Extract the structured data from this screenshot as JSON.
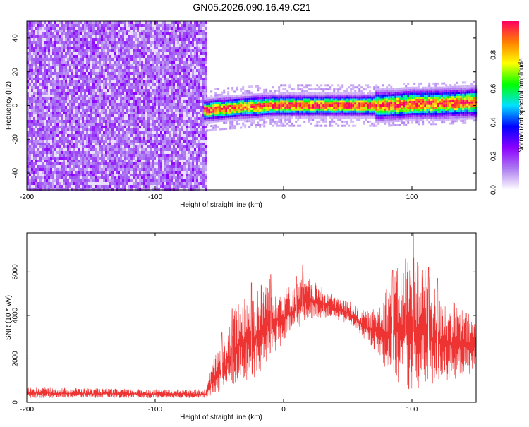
{
  "title": "GN05.2026.090.16.49.C21",
  "chart_data": [
    {
      "type": "heatmap",
      "xlabel": "Height of straight line (km)",
      "ylabel": "Frequency (Hz)",
      "xlim": [
        -200,
        150
      ],
      "ylim": [
        -50,
        50
      ],
      "x_ticks": [
        -200,
        -100,
        0,
        100
      ],
      "y_ticks": [
        -40,
        -20,
        0,
        20,
        40
      ],
      "noise_region_x": [
        -200,
        -60
      ],
      "signal_band": {
        "x_start": -62,
        "x_end": 150,
        "center_freq_hz": [
          [
            -62,
            -3
          ],
          [
            -50,
            -2
          ],
          [
            -30,
            -1
          ],
          [
            -10,
            0
          ],
          [
            0,
            0
          ],
          [
            20,
            0
          ],
          [
            50,
            0
          ],
          [
            80,
            0
          ],
          [
            100,
            1
          ],
          [
            120,
            1
          ],
          [
            150,
            2
          ]
        ]
      },
      "colorbar": {
        "label": "Normalized spectral amplitude",
        "range": [
          0,
          1
        ],
        "ticks": [
          0.0,
          0.2,
          0.4,
          0.6,
          0.8
        ],
        "colors": [
          "#ffffff",
          "#ad7cf0",
          "#8b00ff",
          "#0000ff",
          "#00e0ff",
          "#00ff00",
          "#ffff00",
          "#ff8000",
          "#ff0060"
        ]
      }
    },
    {
      "type": "line",
      "xlabel": "Height of straight line (km)",
      "ylabel": "SNR (10 * v/v)",
      "xlim": [
        -200,
        150
      ],
      "ylim": [
        0,
        7800
      ],
      "x_ticks": [
        -200,
        -100,
        0,
        100
      ],
      "y_ticks": [
        0,
        2000,
        4000,
        6000
      ],
      "line_color": "#ee3333",
      "envelope": {
        "x": [
          -200,
          -150,
          -100,
          -60,
          -55,
          -50,
          -45,
          -40,
          -35,
          -30,
          -25,
          -20,
          -15,
          -10,
          -5,
          0,
          5,
          10,
          15,
          20,
          25,
          30,
          35,
          40,
          45,
          50,
          55,
          60,
          65,
          70,
          75,
          80,
          85,
          90,
          95,
          100,
          105,
          110,
          115,
          120,
          125,
          130,
          135,
          140,
          145,
          150
        ],
        "low": [
          200,
          200,
          200,
          200,
          300,
          500,
          600,
          700,
          800,
          900,
          1000,
          1100,
          1500,
          2000,
          2400,
          2700,
          3000,
          3300,
          3600,
          3800,
          3900,
          3900,
          3900,
          3800,
          3700,
          3600,
          3400,
          3100,
          2800,
          2500,
          2000,
          1500,
          1000,
          800,
          600,
          500,
          500,
          600,
          700,
          800,
          900,
          1000,
          1100,
          1200,
          1300,
          1400
        ],
        "high": [
          700,
          650,
          600,
          600,
          2000,
          2500,
          3000,
          4000,
          4800,
          5200,
          5000,
          5500,
          5600,
          5800,
          5500,
          5300,
          5400,
          5600,
          5800,
          5700,
          5500,
          5300,
          5100,
          4900,
          4800,
          4700,
          4500,
          4300,
          4200,
          4300,
          4800,
          5400,
          5900,
          6300,
          6700,
          7000,
          6800,
          6200,
          5600,
          5200,
          5000,
          4800,
          4500,
          4300,
          4100,
          4000
        ],
        "spikes": [
          [
            -48,
            3200
          ],
          [
            -40,
            4300
          ],
          [
            -25,
            5500
          ],
          [
            -10,
            5900
          ],
          [
            10,
            5800
          ],
          [
            15,
            6300
          ],
          [
            85,
            6100
          ],
          [
            95,
            6600
          ],
          [
            101,
            7800
          ],
          [
            113,
            6200
          ],
          [
            120,
            5700
          ]
        ]
      }
    }
  ]
}
